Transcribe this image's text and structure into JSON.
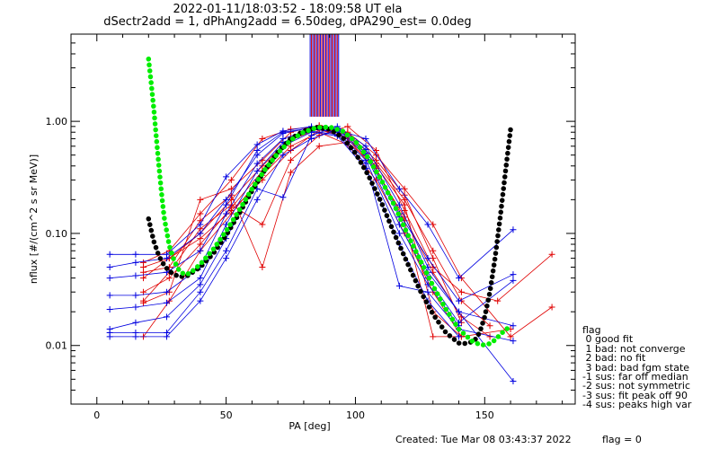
{
  "title_line1": "2022-01-11/18:03:52 - 18:09:58 UT ela",
  "title_line2": "dSectr2add = 1, dPhAng2add = 6.50deg, dPA290_est=   0.0deg",
  "footer": {
    "created": "Created: Tue Mar 08 03:43:37 2022",
    "flag": "flag = 0"
  },
  "legend": {
    "title": "flag",
    "items": [
      " 0 good fit",
      " 1 bad: not converge",
      " 2 bad: no fit",
      " 3 bad: bad fgm state",
      "-1 sus: far off median",
      "-2 sus: not symmetric",
      "-3 sus: fit peak off 90",
      "-4 sus: peaks high var"
    ]
  },
  "colors": {
    "black_curve": "#000000",
    "green_curve": "#00ee00",
    "red_lines": "#e00000",
    "blue_lines": "#0000e0",
    "peak_marker_blue": "#0000e0",
    "peak_marker_red": "#e00000"
  },
  "chart_data": {
    "type": "line",
    "title": "2022-01-11/18:03:52 - 18:09:58 UT ela",
    "subtitle": "dSectr2add = 1, dPhAng2add = 6.50deg, dPA290_est=   0.0deg",
    "xlabel": "PA [deg]",
    "ylabel": "nflux [#/(cm^2 s sr MeV)]",
    "xlim": [
      -10,
      185
    ],
    "ylim": [
      0.003,
      6
    ],
    "yscale": "log",
    "grid": false,
    "xticks": [
      0,
      50,
      100,
      150
    ],
    "xtick_labels": [
      "0",
      "50",
      "100",
      "150"
    ],
    "yticks": [
      0.01,
      0.1,
      1.0
    ],
    "ytick_labels": [
      "0.01",
      "0.10",
      "1.00"
    ],
    "series": [
      {
        "color": "#000000",
        "style": "thick-dots",
        "x": [
          20,
          22,
          24,
          26,
          28,
          30,
          32,
          35,
          40,
          45,
          50,
          55,
          60,
          65,
          70,
          75,
          80,
          85,
          90,
          95,
          100,
          105,
          110,
          115,
          120,
          125,
          130,
          135,
          140,
          143,
          146,
          148,
          150,
          152,
          154,
          156,
          158,
          160
        ],
        "y": [
          0.135,
          0.085,
          0.063,
          0.052,
          0.046,
          0.043,
          0.041,
          0.042,
          0.05,
          0.066,
          0.096,
          0.15,
          0.24,
          0.37,
          0.53,
          0.7,
          0.82,
          0.88,
          0.85,
          0.72,
          0.52,
          0.33,
          0.19,
          0.1,
          0.055,
          0.031,
          0.019,
          0.013,
          0.0105,
          0.0104,
          0.011,
          0.013,
          0.018,
          0.03,
          0.06,
          0.14,
          0.35,
          0.85
        ]
      },
      {
        "color": "#00ee00",
        "style": "thick-dots",
        "x": [
          20,
          21,
          22,
          23,
          24,
          25,
          26,
          28,
          30,
          32,
          34,
          36,
          40,
          45,
          50,
          55,
          60,
          65,
          70,
          75,
          80,
          85,
          90,
          95,
          100,
          105,
          110,
          115,
          120,
          125,
          130,
          135,
          140,
          145,
          148,
          150,
          152,
          154,
          156,
          158,
          160
        ],
        "y": [
          3.6,
          2.2,
          1.3,
          0.72,
          0.4,
          0.23,
          0.14,
          0.078,
          0.056,
          0.046,
          0.043,
          0.044,
          0.053,
          0.072,
          0.105,
          0.16,
          0.25,
          0.37,
          0.52,
          0.68,
          0.8,
          0.88,
          0.89,
          0.82,
          0.66,
          0.47,
          0.3,
          0.18,
          0.1,
          0.058,
          0.034,
          0.021,
          0.014,
          0.011,
          0.0102,
          0.0101,
          0.0104,
          0.0112,
          0.0125,
          0.0138,
          0.0148
        ]
      }
    ],
    "red_scans": [
      [
        [
          18,
          0.05
        ],
        [
          28,
          0.06
        ],
        [
          40,
          0.1
        ],
        [
          52,
          0.2
        ],
        [
          64,
          0.4
        ],
        [
          75,
          0.72
        ],
        [
          86,
          0.88
        ],
        [
          97,
          0.75
        ],
        [
          108,
          0.42
        ],
        [
          119,
          0.2
        ],
        [
          130,
          0.07
        ],
        [
          141,
          0.025
        ],
        [
          152,
          0.015
        ]
      ],
      [
        [
          18,
          0.03
        ],
        [
          28,
          0.04
        ],
        [
          40,
          0.08
        ],
        [
          52,
          0.17
        ],
        [
          64,
          0.36
        ],
        [
          75,
          0.68
        ],
        [
          86,
          0.86
        ],
        [
          97,
          0.7
        ],
        [
          108,
          0.36
        ],
        [
          119,
          0.14
        ],
        [
          130,
          0.045
        ],
        [
          141,
          0.018
        ],
        [
          152,
          0.012
        ]
      ],
      [
        [
          18,
          0.012
        ],
        [
          28,
          0.025
        ],
        [
          40,
          0.07
        ],
        [
          52,
          0.15
        ],
        [
          64,
          0.33
        ],
        [
          75,
          0.6
        ],
        [
          86,
          0.8
        ],
        [
          97,
          0.62
        ],
        [
          108,
          0.3
        ],
        [
          119,
          0.1
        ],
        [
          130,
          0.03
        ],
        [
          141,
          0.012
        ],
        [
          160,
          0.014
        ]
      ],
      [
        [
          18,
          0.024
        ],
        [
          28,
          0.03
        ],
        [
          40,
          0.2
        ],
        [
          52,
          0.25
        ],
        [
          64,
          0.45
        ],
        [
          75,
          0.8
        ],
        [
          86,
          0.92
        ],
        [
          97,
          0.8
        ],
        [
          108,
          0.5
        ],
        [
          119,
          0.25
        ],
        [
          130,
          0.12
        ],
        [
          141,
          0.04
        ],
        [
          160,
          0.012
        ],
        [
          176,
          0.022
        ]
      ],
      [
        [
          18,
          0.045
        ],
        [
          28,
          0.05
        ],
        [
          40,
          0.13
        ],
        [
          52,
          0.22
        ],
        [
          64,
          0.05
        ],
        [
          75,
          0.35
        ],
        [
          86,
          0.6
        ],
        [
          97,
          0.65
        ],
        [
          108,
          0.4
        ],
        [
          119,
          0.18
        ],
        [
          130,
          0.02
        ],
        [
          141,
          0.012
        ]
      ],
      [
        [
          18,
          0.055
        ],
        [
          28,
          0.07
        ],
        [
          40,
          0.15
        ],
        [
          52,
          0.3
        ],
        [
          64,
          0.7
        ],
        [
          75,
          0.85
        ],
        [
          86,
          0.9
        ],
        [
          97,
          0.78
        ],
        [
          108,
          0.45
        ],
        [
          119,
          0.22
        ],
        [
          130,
          0.06
        ],
        [
          141,
          0.016
        ]
      ],
      [
        [
          18,
          0.025
        ],
        [
          28,
          0.045
        ],
        [
          40,
          0.11
        ],
        [
          52,
          0.18
        ],
        [
          64,
          0.12
        ],
        [
          75,
          0.45
        ],
        [
          86,
          0.75
        ],
        [
          97,
          0.9
        ],
        [
          108,
          0.55
        ],
        [
          119,
          0.16
        ],
        [
          130,
          0.05
        ],
        [
          141,
          0.03
        ],
        [
          155,
          0.025
        ],
        [
          176,
          0.065
        ]
      ],
      [
        [
          18,
          0.04
        ],
        [
          28,
          0.06
        ],
        [
          40,
          0.09
        ],
        [
          52,
          0.16
        ],
        [
          64,
          0.3
        ],
        [
          75,
          0.55
        ],
        [
          86,
          0.84
        ],
        [
          97,
          0.72
        ],
        [
          108,
          0.38
        ],
        [
          119,
          0.13
        ],
        [
          130,
          0.012
        ],
        [
          141,
          0.012
        ]
      ]
    ],
    "blue_scans": [
      [
        [
          5,
          0.065
        ],
        [
          15,
          0.065
        ],
        [
          27,
          0.065
        ],
        [
          40,
          0.12
        ],
        [
          50,
          0.32
        ],
        [
          62,
          0.62
        ],
        [
          72,
          0.82
        ],
        [
          83,
          0.9
        ],
        [
          93,
          0.86
        ],
        [
          104,
          0.56
        ],
        [
          117,
          0.15
        ],
        [
          128,
          0.06
        ],
        [
          140,
          0.025
        ],
        [
          161,
          0.043
        ]
      ],
      [
        [
          5,
          0.05
        ],
        [
          15,
          0.055
        ],
        [
          27,
          0.06
        ],
        [
          40,
          0.1
        ],
        [
          50,
          0.2
        ],
        [
          62,
          0.5
        ],
        [
          72,
          0.78
        ],
        [
          83,
          0.88
        ],
        [
          93,
          0.82
        ],
        [
          104,
          0.5
        ],
        [
          117,
          0.12
        ],
        [
          128,
          0.04
        ],
        [
          140,
          0.016
        ],
        [
          161,
          0.038
        ]
      ],
      [
        [
          5,
          0.028
        ],
        [
          15,
          0.028
        ],
        [
          27,
          0.03
        ],
        [
          40,
          0.05
        ],
        [
          50,
          0.15
        ],
        [
          62,
          0.42
        ],
        [
          72,
          0.7
        ],
        [
          83,
          0.85
        ],
        [
          93,
          0.8
        ],
        [
          104,
          0.45
        ],
        [
          117,
          0.1
        ],
        [
          128,
          0.035
        ],
        [
          140,
          0.015
        ]
      ],
      [
        [
          5,
          0.021
        ],
        [
          15,
          0.022
        ],
        [
          27,
          0.024
        ],
        [
          40,
          0.04
        ],
        [
          50,
          0.12
        ],
        [
          62,
          0.36
        ],
        [
          72,
          0.65
        ],
        [
          83,
          0.82
        ],
        [
          93,
          0.76
        ],
        [
          104,
          0.42
        ],
        [
          117,
          0.034
        ],
        [
          128,
          0.03
        ],
        [
          140,
          0.014
        ],
        [
          161,
          0.011
        ]
      ],
      [
        [
          5,
          0.014
        ],
        [
          15,
          0.016
        ],
        [
          27,
          0.018
        ],
        [
          40,
          0.035
        ],
        [
          50,
          0.09
        ],
        [
          62,
          0.3
        ],
        [
          72,
          0.6
        ],
        [
          83,
          0.8
        ],
        [
          93,
          0.74
        ],
        [
          104,
          0.38
        ],
        [
          117,
          0.08
        ],
        [
          128,
          0.025
        ],
        [
          140,
          0.012
        ]
      ],
      [
        [
          5,
          0.013
        ],
        [
          15,
          0.013
        ],
        [
          27,
          0.013
        ],
        [
          40,
          0.03
        ],
        [
          50,
          0.07
        ],
        [
          62,
          0.25
        ],
        [
          72,
          0.21
        ],
        [
          83,
          0.75
        ],
        [
          93,
          0.9
        ],
        [
          104,
          0.6
        ],
        [
          117,
          0.18
        ],
        [
          128,
          0.05
        ],
        [
          140,
          0.02
        ],
        [
          161,
          0.015
        ]
      ],
      [
        [
          5,
          0.04
        ],
        [
          15,
          0.042
        ],
        [
          27,
          0.045
        ],
        [
          40,
          0.07
        ],
        [
          50,
          0.18
        ],
        [
          62,
          0.55
        ],
        [
          72,
          0.8
        ],
        [
          83,
          0.87
        ],
        [
          93,
          0.85
        ],
        [
          104,
          0.52
        ],
        [
          117,
          0.14
        ],
        [
          128,
          0.045
        ],
        [
          140,
          0.02
        ],
        [
          161,
          0.0048
        ]
      ],
      [
        [
          5,
          0.012
        ],
        [
          15,
          0.012
        ],
        [
          27,
          0.012
        ],
        [
          40,
          0.025
        ],
        [
          50,
          0.06
        ],
        [
          62,
          0.2
        ],
        [
          72,
          0.5
        ],
        [
          83,
          0.7
        ],
        [
          93,
          0.84
        ],
        [
          104,
          0.7
        ],
        [
          117,
          0.25
        ],
        [
          128,
          0.12
        ],
        [
          140,
          0.04
        ],
        [
          161,
          0.108
        ]
      ]
    ],
    "peak_markers": {
      "x_blue": [
        82.5,
        83.5,
        84.5,
        85.5,
        86.5,
        87.5,
        88.5,
        89.5,
        90.5,
        91.5,
        92.5,
        93.5
      ],
      "x_red": [
        83,
        84,
        85,
        86,
        87,
        88,
        89,
        90,
        91,
        92,
        93
      ],
      "y_bottom": 1.1,
      "y_top": 6
    }
  }
}
